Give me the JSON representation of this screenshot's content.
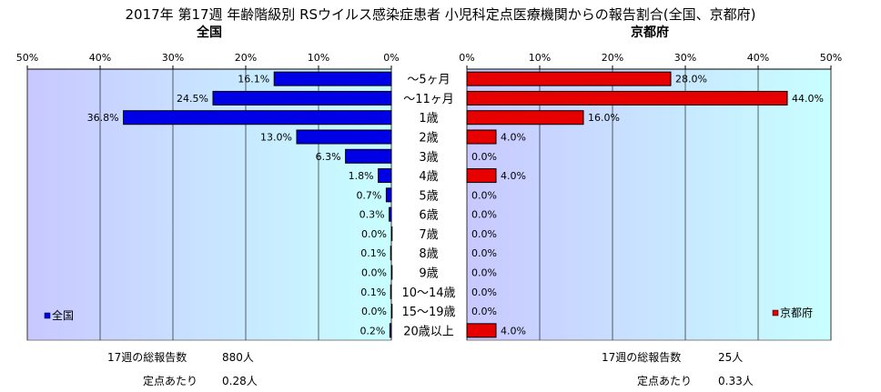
{
  "chart_data": {
    "type": "bar",
    "title": "2017年 第17週 年齢階級別 RSウイルス感染症患者 小児科定点医療機関からの報告割合(全国、京都府)",
    "categories": [
      "～5ヶ月",
      "～11ヶ月",
      "1歳",
      "2歳",
      "3歳",
      "4歳",
      "5歳",
      "6歳",
      "7歳",
      "8歳",
      "9歳",
      "10～14歳",
      "15～19歳",
      "20歳以上"
    ],
    "series": [
      {
        "name": "全国",
        "color": "#0000e6",
        "values": [
          16.1,
          24.5,
          36.8,
          13.0,
          6.3,
          1.8,
          0.7,
          0.3,
          0.0,
          0.1,
          0.0,
          0.1,
          0.0,
          0.2
        ],
        "labels": [
          "16.1%",
          "24.5%",
          "36.8%",
          "13.0%",
          "6.3%",
          "1.8%",
          "0.7%",
          "0.3%",
          "0.0%",
          "0.1%",
          "0.0%",
          "0.1%",
          "0.0%",
          "0.2%"
        ]
      },
      {
        "name": "京都府",
        "color": "#e60000",
        "values": [
          28.0,
          44.0,
          16.0,
          4.0,
          0.0,
          4.0,
          0.0,
          0.0,
          0.0,
          0.0,
          0.0,
          0.0,
          0.0,
          4.0
        ],
        "labels": [
          "28.0%",
          "44.0%",
          "16.0%",
          "4.0%",
          "0.0%",
          "4.0%",
          "0.0%",
          "0.0%",
          "0.0%",
          "0.0%",
          "0.0%",
          "0.0%",
          "0.0%",
          "4.0%"
        ]
      }
    ],
    "panel_titles": [
      "全国",
      "京都府"
    ],
    "ticks": [
      "50%",
      "40%",
      "30%",
      "20%",
      "10%",
      "0%"
    ],
    "ticks_right": [
      "0%",
      "10%",
      "20%",
      "30%",
      "40%",
      "50%"
    ],
    "xlim": [
      0,
      50
    ],
    "grid": true,
    "legend_placement": "bottom-left / bottom-right",
    "background_gradient": [
      "#c8c8ff",
      "#c8ffff"
    ]
  },
  "stats": {
    "national_total_label": "17週の総報告数",
    "national_total_value": "880人",
    "national_per_label": "定点あたり",
    "national_per_value": "0.28人",
    "kyoto_total_label": "17週の総報告数",
    "kyoto_total_value": "25人",
    "kyoto_per_label": "定点あたり",
    "kyoto_per_value": "0.33人"
  }
}
